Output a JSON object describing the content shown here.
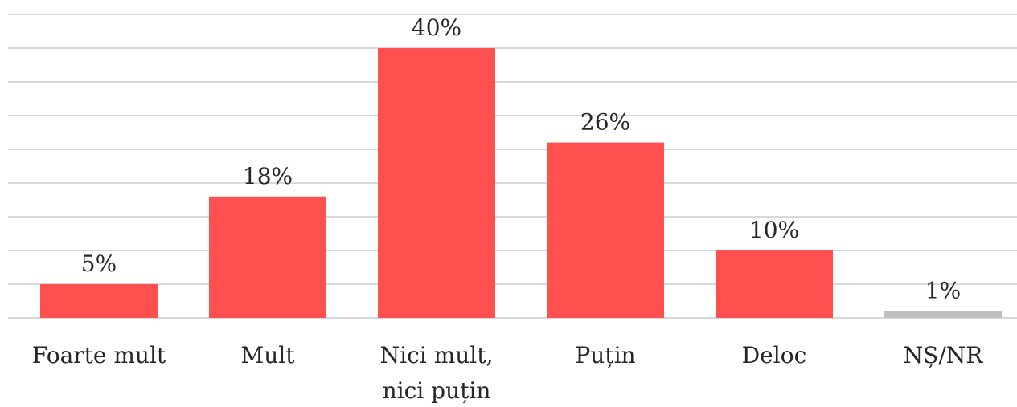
{
  "chart_data": {
    "type": "bar",
    "title": "",
    "xlabel": "",
    "ylabel": "",
    "categories": [
      [
        "Foarte mult"
      ],
      [
        "Mult"
      ],
      [
        "Nici mult,",
        "nici puțin"
      ],
      [
        "Puțin"
      ],
      [
        "Deloc"
      ],
      [
        "NȘ/NR"
      ]
    ],
    "values": [
      5,
      18,
      40,
      26,
      10,
      1
    ],
    "data_labels": [
      "5%",
      "18%",
      "40%",
      "26%",
      "10%",
      "1%"
    ],
    "bar_colors": [
      "#ff5050",
      "#ff5050",
      "#ff5050",
      "#ff5050",
      "#ff5050",
      "#bfbfbf"
    ],
    "ylim": [
      0,
      45
    ],
    "grid": true,
    "y_axis_visible": false,
    "legend": "none"
  }
}
